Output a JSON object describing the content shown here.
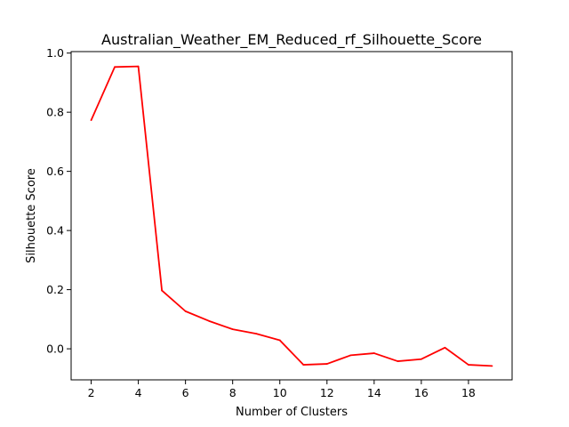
{
  "chart_data": {
    "type": "line",
    "title": "Australian_Weather_EM_Reduced_rf_Silhouette_Score",
    "xlabel": "Number of Clusters",
    "ylabel": "Silhouette Score",
    "xlim": [
      1.15,
      19.85
    ],
    "ylim": [
      -0.105,
      1.005
    ],
    "xticks": [
      2,
      4,
      6,
      8,
      10,
      12,
      14,
      16,
      18
    ],
    "xtick_labels": [
      "2",
      "4",
      "6",
      "8",
      "10",
      "12",
      "14",
      "16",
      "18"
    ],
    "yticks": [
      0.0,
      0.2,
      0.4,
      0.6,
      0.8,
      1.0
    ],
    "ytick_labels": [
      "0.0",
      "0.2",
      "0.4",
      "0.6",
      "0.8",
      "1.0"
    ],
    "grid": false,
    "series": [
      {
        "name": "Silhouette Score",
        "color": "#ff0000",
        "x": [
          2,
          3,
          4,
          5,
          6,
          7,
          8,
          9,
          10,
          11,
          12,
          13,
          14,
          15,
          16,
          17,
          18,
          19
        ],
        "y": [
          0.773,
          0.953,
          0.955,
          0.197,
          0.127,
          0.094,
          0.066,
          0.051,
          0.029,
          -0.054,
          -0.051,
          -0.022,
          -0.015,
          -0.042,
          -0.035,
          0.004,
          -0.054,
          -0.058
        ]
      }
    ]
  }
}
